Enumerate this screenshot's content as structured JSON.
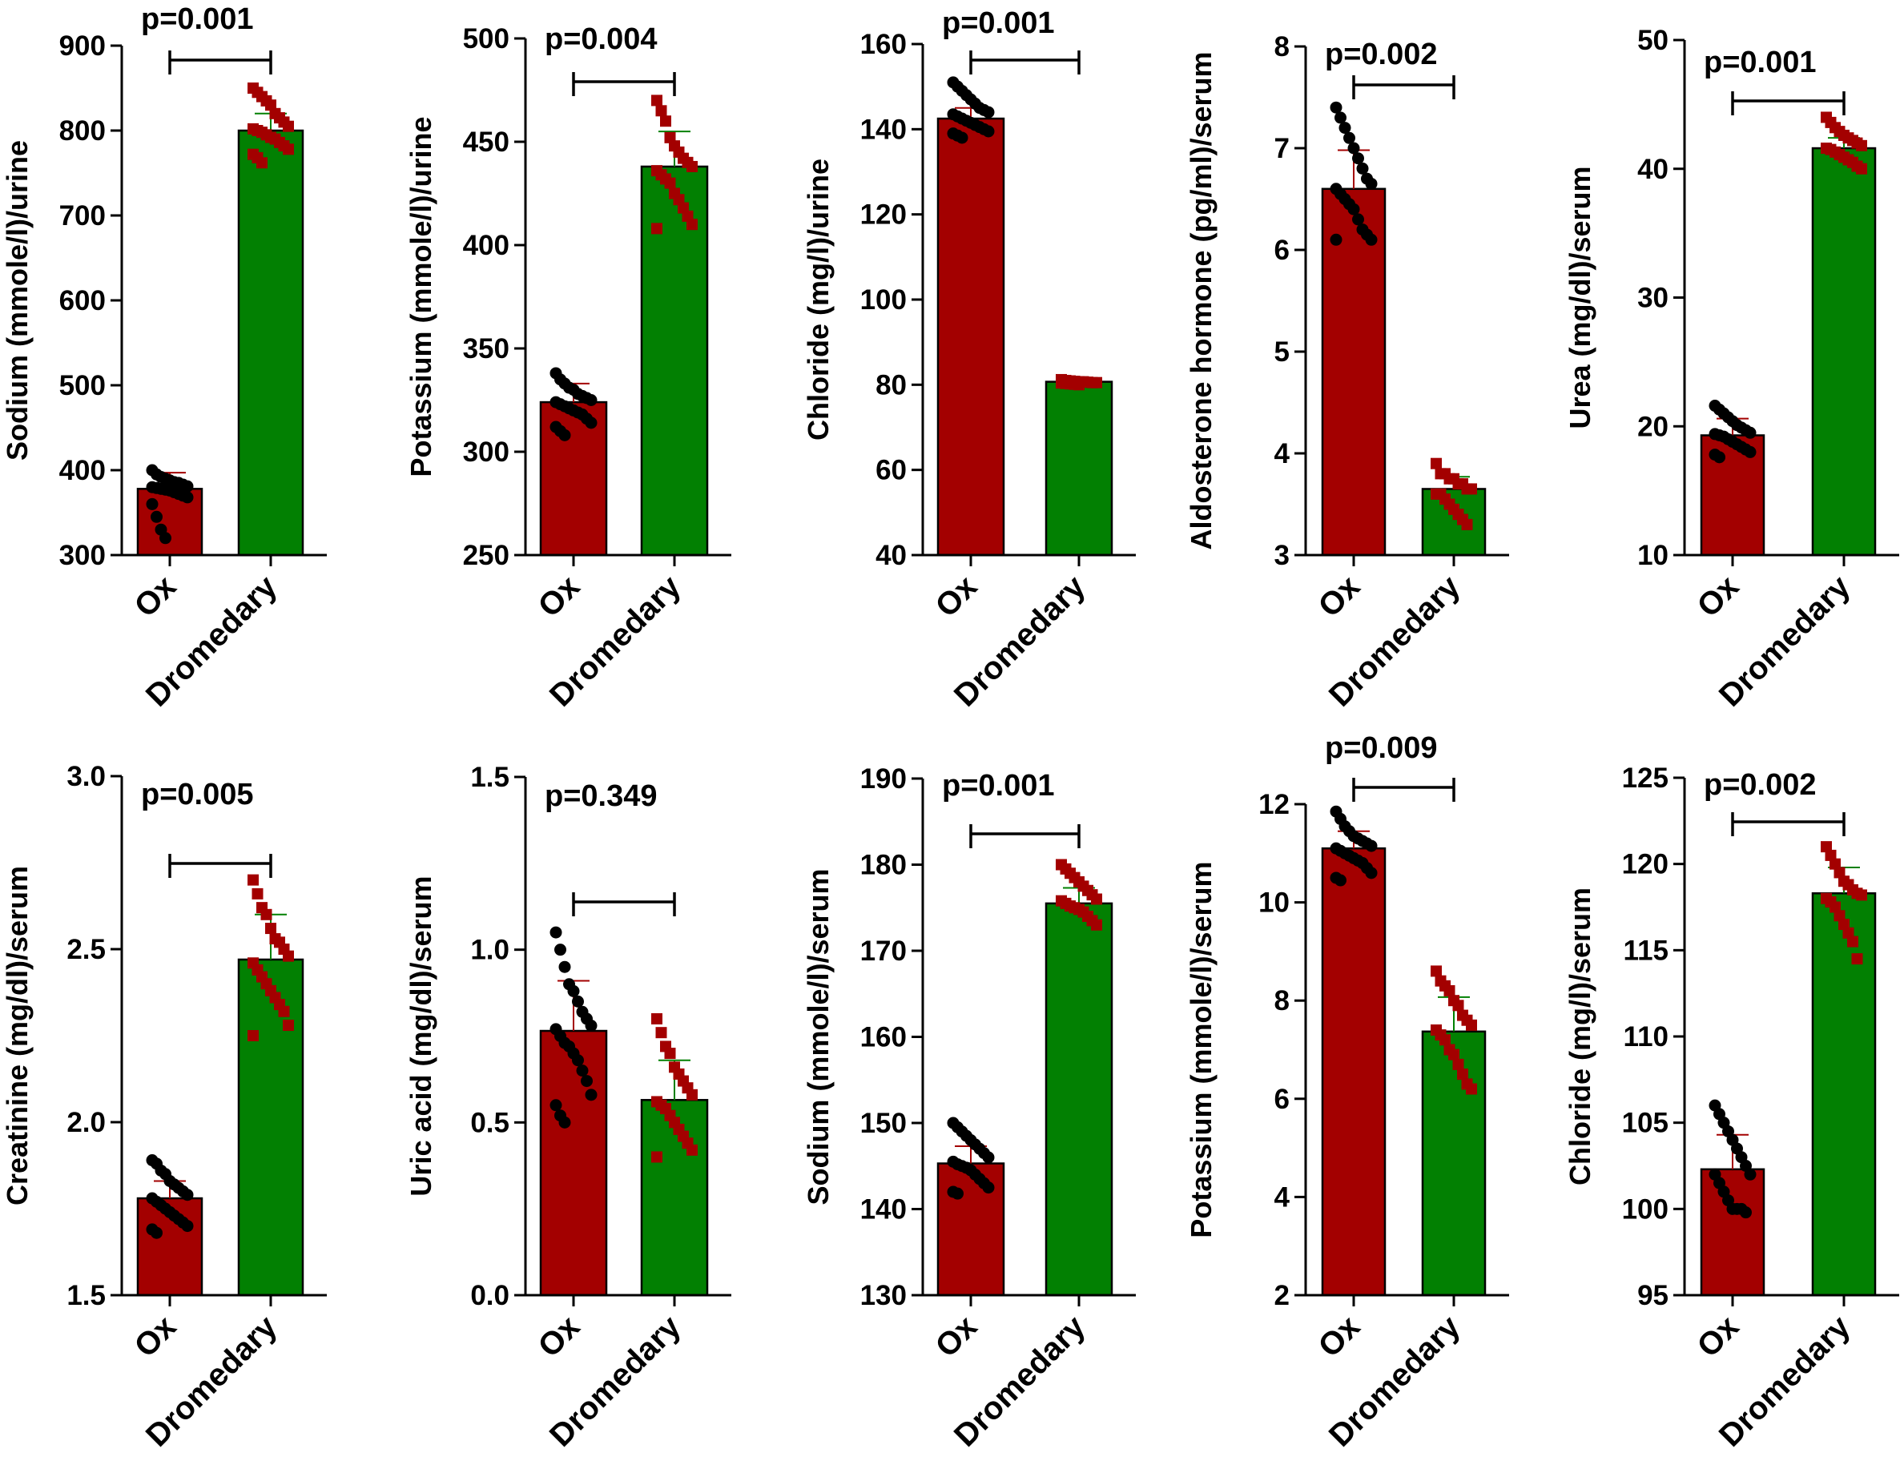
{
  "colors": {
    "ox": "#a30000",
    "dromedary": "#028002",
    "ox_marker": "#000000",
    "dromedary_marker": "#a30000",
    "axis": "#000000"
  },
  "chart_data": [
    {
      "type": "bar",
      "ylabel": "Sodium (mmole/l)/urine",
      "categories": [
        "Ox",
        "Dromedary"
      ],
      "values": [
        378,
        800
      ],
      "errors": [
        19,
        20
      ],
      "ylim": [
        300,
        900
      ],
      "yticks": [
        "300",
        "400",
        "500",
        "600",
        "700",
        "800",
        "900"
      ],
      "pvalue": "p=0.001",
      "points": [
        [
          400,
          395,
          392,
          390,
          388,
          386,
          385,
          383,
          381,
          380,
          379,
          378,
          377,
          376,
          374,
          372,
          370,
          368,
          360,
          345,
          330,
          320
        ],
        [
          850,
          845,
          840,
          835,
          830,
          820,
          815,
          810,
          805,
          802,
          800,
          798,
          795,
          792,
          790,
          786,
          782,
          778,
          772,
          768,
          762
        ]
      ]
    },
    {
      "type": "bar",
      "ylabel": "Potassium (mmole/l)/urine",
      "categories": [
        "Ox",
        "Dromedary"
      ],
      "values": [
        324,
        438
      ],
      "errors": [
        9,
        17
      ],
      "ylim": [
        250,
        500
      ],
      "yticks": [
        "250",
        "300",
        "350",
        "400",
        "450",
        "500"
      ],
      "pvalue": "p=0.004",
      "points": [
        [
          338,
          335,
          333,
          331,
          330,
          328,
          327,
          326,
          325,
          324,
          323,
          322,
          321,
          320,
          319,
          318,
          316,
          314,
          312,
          310,
          308
        ],
        [
          470,
          465,
          460,
          452,
          448,
          445,
          442,
          440,
          438,
          436,
          434,
          432,
          430,
          425,
          422,
          418,
          414,
          410,
          408
        ]
      ]
    },
    {
      "type": "bar",
      "ylabel": "Chloride (mg/l)/urine",
      "categories": [
        "Ox",
        "Dromedary"
      ],
      "values": [
        142.5,
        80.7
      ],
      "errors": [
        2.5,
        0.5
      ],
      "ylim": [
        40,
        160
      ],
      "yticks": [
        "40",
        "60",
        "80",
        "100",
        "120",
        "140",
        "160"
      ],
      "pvalue": "p=0.001",
      "points": [
        [
          151,
          150,
          149,
          148,
          147,
          146,
          145,
          144.5,
          144,
          143.5,
          143,
          142.5,
          142,
          141.5,
          141,
          140.5,
          140,
          139.5,
          139,
          138.5,
          138
        ],
        [
          81.2,
          81.0,
          80.9,
          80.8,
          80.7,
          80.7,
          80.6,
          80.5,
          80.5,
          80.4,
          80.3,
          80.2,
          80.1,
          80.0
        ]
      ]
    },
    {
      "type": "bar",
      "ylabel": "Aldosterone hormone (pg/ml)/serum",
      "categories": [
        "Ox",
        "Dromedary"
      ],
      "values": [
        6.6,
        3.65
      ],
      "errors": [
        0.38,
        0.12
      ],
      "ylim": [
        3,
        8
      ],
      "yticks": [
        "3",
        "4",
        "5",
        "6",
        "7",
        "8"
      ],
      "pvalue": "p=0.002",
      "points": [
        [
          7.4,
          7.3,
          7.2,
          7.1,
          7.0,
          6.9,
          6.8,
          6.7,
          6.65,
          6.6,
          6.55,
          6.5,
          6.45,
          6.4,
          6.3,
          6.2,
          6.15,
          6.1,
          6.1
        ],
        [
          3.9,
          3.8,
          3.8,
          3.75,
          3.75,
          3.7,
          3.7,
          3.65,
          3.65,
          3.6,
          3.6,
          3.55,
          3.5,
          3.45,
          3.4,
          3.35,
          3.3
        ]
      ]
    },
    {
      "type": "bar",
      "ylabel": "Urea (mg/dl)/serum",
      "categories": [
        "Ox",
        "Dromedary"
      ],
      "values": [
        19.3,
        41.6
      ],
      "errors": [
        1.3,
        0.8
      ],
      "ylim": [
        10,
        50
      ],
      "yticks": [
        "10",
        "20",
        "30",
        "40",
        "50"
      ],
      "pvalue": "p=0.001",
      "points": [
        [
          21.6,
          21.3,
          21.0,
          20.7,
          20.4,
          20.1,
          19.9,
          19.7,
          19.5,
          19.4,
          19.3,
          19.2,
          19.0,
          18.8,
          18.6,
          18.4,
          18.2,
          18.0,
          17.8,
          17.6
        ],
        [
          44.0,
          43.6,
          43.2,
          42.9,
          42.6,
          42.4,
          42.2,
          42.0,
          41.8,
          41.6,
          41.5,
          41.3,
          41.1,
          40.9,
          40.7,
          40.5,
          40.2,
          40.0
        ]
      ]
    },
    {
      "type": "bar",
      "ylabel": "Creatinine (mg/dl)/serum",
      "categories": [
        "Ox",
        "Dromedary"
      ],
      "values": [
        1.78,
        2.47
      ],
      "errors": [
        0.05,
        0.13
      ],
      "ylim": [
        1.5,
        3.0
      ],
      "yticks": [
        "1.5",
        "2.0",
        "2.5",
        "3.0"
      ],
      "pvalue": "p=0.005",
      "points": [
        [
          1.89,
          1.88,
          1.86,
          1.85,
          1.83,
          1.82,
          1.81,
          1.8,
          1.79,
          1.78,
          1.77,
          1.76,
          1.75,
          1.74,
          1.73,
          1.72,
          1.71,
          1.7,
          1.69,
          1.68
        ],
        [
          2.7,
          2.66,
          2.62,
          2.6,
          2.56,
          2.53,
          2.52,
          2.5,
          2.48,
          2.46,
          2.44,
          2.42,
          2.4,
          2.38,
          2.36,
          2.34,
          2.32,
          2.28,
          2.25
        ]
      ]
    },
    {
      "type": "bar",
      "ylabel": "Uric acid (mg/dl)/serum",
      "categories": [
        "Ox",
        "Dromedary"
      ],
      "values": [
        0.765,
        0.565
      ],
      "errors": [
        0.145,
        0.115
      ],
      "ylim": [
        0.0,
        1.5
      ],
      "yticks": [
        "0.0",
        "0.5",
        "1.0",
        "1.5"
      ],
      "pvalue": "p=0.349",
      "points": [
        [
          1.05,
          1.0,
          0.95,
          0.9,
          0.88,
          0.85,
          0.82,
          0.8,
          0.78,
          0.77,
          0.75,
          0.73,
          0.72,
          0.7,
          0.68,
          0.65,
          0.62,
          0.58,
          0.55,
          0.52,
          0.5
        ],
        [
          0.8,
          0.76,
          0.72,
          0.7,
          0.66,
          0.64,
          0.62,
          0.6,
          0.58,
          0.56,
          0.55,
          0.54,
          0.52,
          0.5,
          0.48,
          0.46,
          0.44,
          0.42,
          0.4
        ]
      ]
    },
    {
      "type": "bar",
      "ylabel": "Sodium (mmole/l)/serum",
      "categories": [
        "Ox",
        "Dromedary"
      ],
      "values": [
        145.3,
        175.5
      ],
      "errors": [
        2.0,
        1.8
      ],
      "ylim": [
        130,
        190
      ],
      "yticks": [
        "130",
        "140",
        "150",
        "160",
        "170",
        "180",
        "190"
      ],
      "pvalue": "p=0.001",
      "points": [
        [
          150,
          149.5,
          149,
          148.5,
          148,
          147.5,
          147,
          146.5,
          146,
          145.5,
          145.2,
          145,
          144.8,
          144.5,
          144,
          143.5,
          143,
          142.5,
          142,
          141.8
        ],
        [
          180,
          179.5,
          179,
          178.5,
          178,
          177.5,
          177,
          176.5,
          176,
          175.8,
          175.5,
          175.2,
          175,
          174.8,
          174.5,
          174,
          173.5,
          173
        ]
      ]
    },
    {
      "type": "bar",
      "ylabel": "Potassium (mmole/l)/serum",
      "categories": [
        "Ox",
        "Dromedary"
      ],
      "values": [
        11.1,
        7.37
      ],
      "errors": [
        0.35,
        0.7
      ],
      "ylim": [
        2,
        12
      ],
      "yticks": [
        "2",
        "4",
        "6",
        "8",
        "10",
        "12"
      ],
      "pvalue": "p=0.009",
      "points": [
        [
          11.85,
          11.7,
          11.55,
          11.45,
          11.35,
          11.3,
          11.25,
          11.2,
          11.15,
          11.1,
          11.05,
          11.0,
          10.95,
          10.9,
          10.85,
          10.8,
          10.7,
          10.6,
          10.5,
          10.45
        ],
        [
          8.6,
          8.4,
          8.3,
          8.2,
          8.0,
          7.9,
          7.7,
          7.6,
          7.5,
          7.4,
          7.3,
          7.2,
          7.0,
          6.9,
          6.7,
          6.5,
          6.3,
          6.2
        ]
      ]
    },
    {
      "type": "bar",
      "ylabel": "Chloride (mg/l)/serum",
      "categories": [
        "Ox",
        "Dromedary"
      ],
      "values": [
        102.3,
        118.3
      ],
      "errors": [
        2.0,
        1.5
      ],
      "ylim": [
        95,
        125
      ],
      "yticks": [
        "95",
        "100",
        "105",
        "110",
        "115",
        "120",
        "125"
      ],
      "pvalue": "p=0.002",
      "points": [
        [
          106,
          105.5,
          105,
          104.5,
          104,
          103.5,
          103,
          102.5,
          102,
          102,
          101.5,
          101,
          100.5,
          100,
          100,
          100,
          99.8
        ],
        [
          121,
          120.5,
          120,
          119.5,
          119,
          118.8,
          118.5,
          118.3,
          118.2,
          118,
          117.8,
          117.5,
          117,
          116.5,
          116,
          115.5,
          114.5
        ]
      ]
    }
  ]
}
